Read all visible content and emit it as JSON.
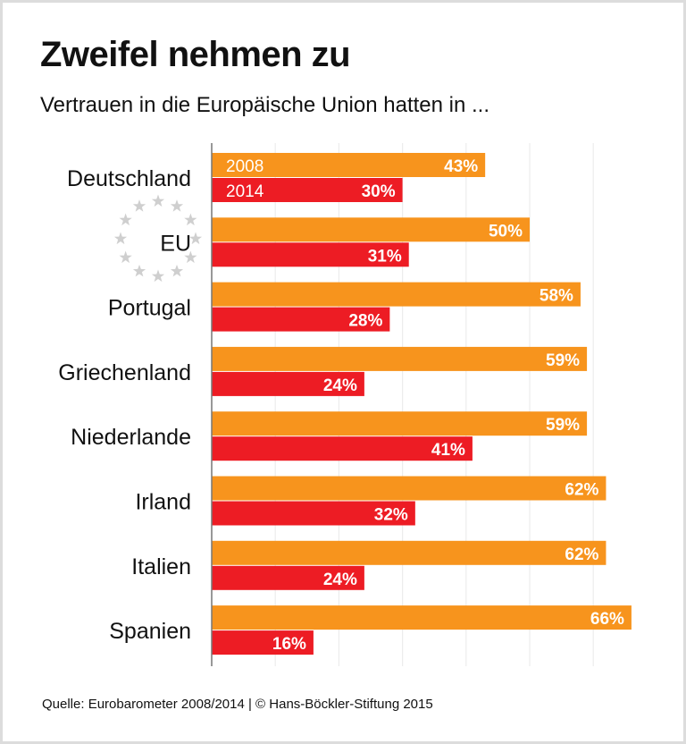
{
  "title": "Zweifel nehmen zu",
  "subtitle": "Vertrauen in die Europäische Union hatten in ...",
  "source": "Quelle: Eurobarometer 2008/2014 | © Hans-Böckler-Stiftung 2015",
  "chart_data": {
    "type": "bar",
    "orientation": "horizontal",
    "categories": [
      "Deutschland",
      "EU",
      "Portugal",
      "Griechenland",
      "Niederlande",
      "Irland",
      "Italien",
      "Spanien"
    ],
    "series": [
      {
        "name": "2008",
        "color": "#f7941d",
        "values": [
          43,
          50,
          58,
          59,
          59,
          62,
          62,
          66
        ]
      },
      {
        "name": "2014",
        "color": "#ed1c24",
        "values": [
          30,
          31,
          28,
          24,
          41,
          32,
          24,
          16
        ]
      }
    ],
    "value_suffix": "%",
    "xlim": [
      0,
      70
    ],
    "grid": true,
    "eu_stars_icon": "eu-stars"
  }
}
